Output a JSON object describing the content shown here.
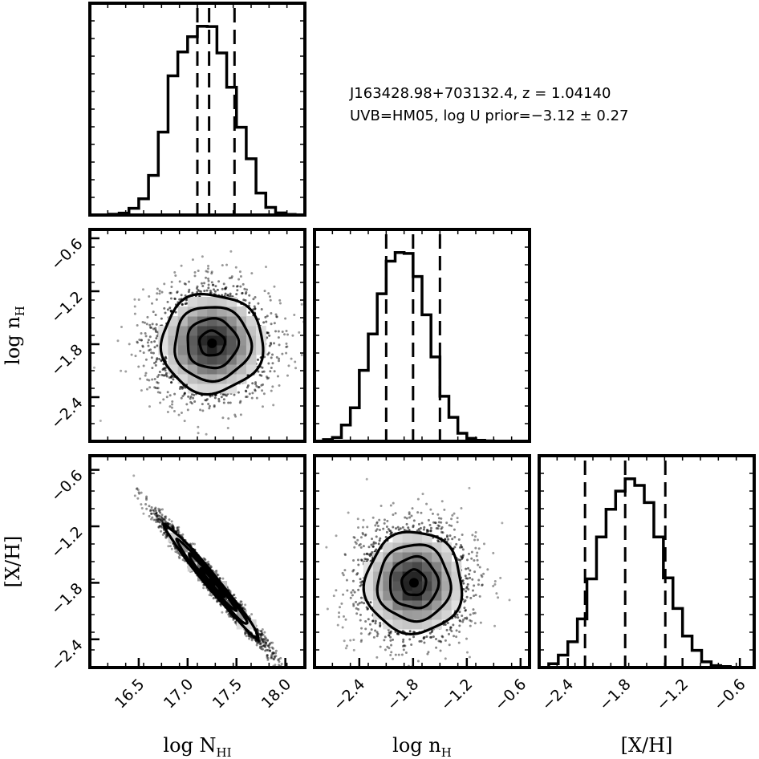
{
  "annotation": {
    "line1": "J163428.98+703132.4, z = 1.04140",
    "line2": "UVB=HM05, log U prior=−3.12 ± 0.27"
  },
  "chart_data": {
    "type": "corner",
    "parameters": [
      {
        "key": "logNHI",
        "label": "log N_HI",
        "label_main": "log N",
        "label_sub": "HI",
        "range": [
          16.0,
          18.2
        ],
        "ticks": [
          16.5,
          17.0,
          17.5,
          18.0
        ],
        "tick_labels": [
          "16.5",
          "17.0",
          "17.5",
          "18.0"
        ]
      },
      {
        "key": "lognH",
        "label": "log n_H",
        "label_main": "log n",
        "label_sub": "H",
        "range": [
          -2.9,
          -0.5
        ],
        "ticks": [
          -2.4,
          -1.8,
          -1.2,
          -0.6
        ],
        "tick_labels": [
          "−2.4",
          "−1.8",
          "−1.2",
          "−0.6"
        ]
      },
      {
        "key": "XH",
        "label": "[X/H]",
        "label_main": "[X/H]",
        "label_sub": "",
        "range": [
          -2.7,
          -0.45
        ],
        "ticks": [
          -2.4,
          -1.8,
          -1.2,
          -0.6
        ],
        "tick_labels": [
          "−2.4",
          "−1.8",
          "−1.2",
          "−0.6"
        ]
      }
    ],
    "diagonal_histograms": [
      {
        "param": "logNHI",
        "bin_edges": [
          16.0,
          16.1,
          16.2,
          16.3,
          16.4,
          16.5,
          16.6,
          16.7,
          16.8,
          16.9,
          17.0,
          17.1,
          17.2,
          17.3,
          17.4,
          17.5,
          17.6,
          17.7,
          17.8,
          17.9,
          18.0,
          18.1,
          18.2
        ],
        "counts": [
          0.0,
          0.1,
          0.4,
          1.0,
          3.5,
          8.5,
          20.8,
          43.5,
          73.0,
          85.5,
          93.5,
          99.0,
          98.8,
          85.0,
          67.0,
          46.0,
          29.5,
          11.5,
          4.0,
          1.1,
          0.3,
          0.1
        ],
        "quantiles": [
          17.1,
          17.22,
          17.48
        ]
      },
      {
        "param": "lognH",
        "bin_edges": [
          -2.9,
          -2.8,
          -2.7,
          -2.6,
          -2.5,
          -2.4,
          -2.3,
          -2.2,
          -2.1,
          -2.0,
          -1.9,
          -1.8,
          -1.7,
          -1.6,
          -1.5,
          -1.4,
          -1.3,
          -1.2,
          -1.1,
          -1.0,
          -0.9,
          -0.8,
          -0.7,
          -0.6,
          -0.5
        ],
        "counts": [
          0.1,
          0.9,
          2.0,
          8.5,
          17.5,
          37.0,
          56.0,
          77.0,
          94.0,
          98.5,
          98.0,
          86.0,
          66.0,
          44.0,
          23.5,
          12.5,
          4.2,
          1.5,
          0.5,
          0.2,
          0.1,
          0.0,
          0.0,
          0.0
        ],
        "quantiles": [
          -2.1,
          -1.8,
          -1.5
        ]
      },
      {
        "param": "XH",
        "bin_edges": [
          -2.7,
          -2.6,
          -2.5,
          -2.4,
          -2.3,
          -2.2,
          -2.1,
          -2.0,
          -1.9,
          -1.8,
          -1.7,
          -1.6,
          -1.5,
          -1.4,
          -1.3,
          -1.2,
          -1.1,
          -1.0,
          -0.9,
          -0.8,
          -0.7,
          -0.6,
          -0.5
        ],
        "counts": [
          0.0,
          2.0,
          6.5,
          13.5,
          25.5,
          46.5,
          68.5,
          83.0,
          92.5,
          99.0,
          95.5,
          86.5,
          68.5,
          47.0,
          31.0,
          16.5,
          9.0,
          3.0,
          1.0,
          0.5,
          0.1,
          0.0
        ],
        "quantiles": [
          -2.22,
          -1.8,
          -1.38
        ]
      }
    ],
    "pair_densities": [
      {
        "x": "logNHI",
        "y": "lognH",
        "center": [
          17.25,
          -1.79
        ],
        "sigma": [
          0.26,
          0.28
        ],
        "correlation": 0.0
      },
      {
        "x": "logNHI",
        "y": "XH",
        "center": [
          17.25,
          -1.79
        ],
        "sigma": [
          0.24,
          0.3
        ],
        "correlation": -0.985
      },
      {
        "x": "lognH",
        "y": "XH",
        "center": [
          -1.79,
          -1.8
        ],
        "sigma": [
          0.27,
          0.27
        ],
        "correlation": 0.0
      }
    ],
    "contour_levels_sigma": [
      0.5,
      1.0,
      1.5,
      2.0
    ],
    "style": {
      "line_color": "#000000",
      "background": "#ffffff"
    }
  }
}
